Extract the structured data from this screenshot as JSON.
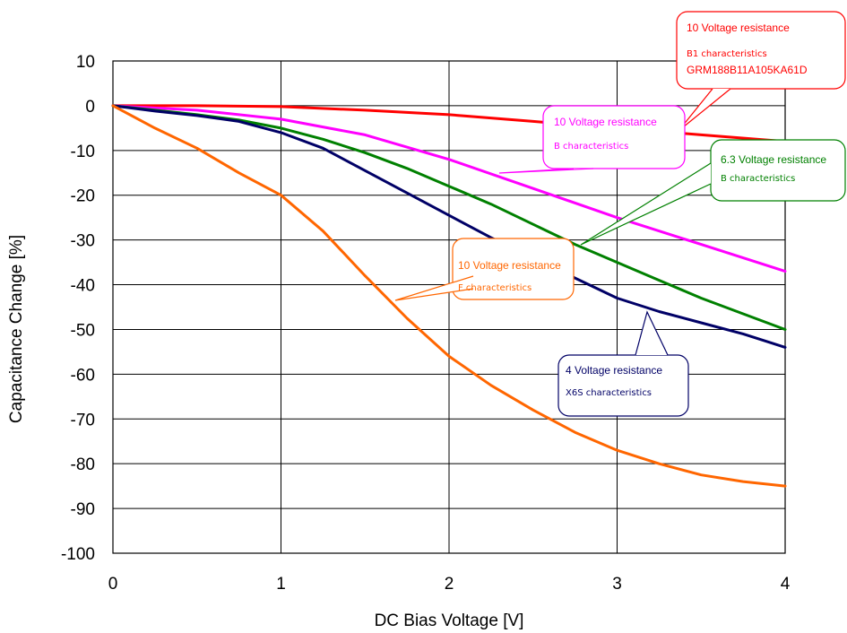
{
  "chart_data": {
    "type": "line",
    "xlabel": "DC Bias Voltage [V]",
    "ylabel": "Capacitance Change [%]",
    "xlim": [
      0,
      4
    ],
    "ylim": [
      -100,
      10
    ],
    "x_ticks": [
      "0",
      "1",
      "2",
      "3",
      "4"
    ],
    "y_ticks": [
      "10",
      "0",
      "-10",
      "-20",
      "-30",
      "-40",
      "-50",
      "-60",
      "-70",
      "-80",
      "-90",
      "-100"
    ],
    "grid": true,
    "series": [
      {
        "key": "b1_10v",
        "color": "#ff0000",
        "x": [
          0,
          0.5,
          1.0,
          1.5,
          2.0,
          2.5,
          3.0,
          3.5,
          4.0
        ],
        "y": [
          0,
          0,
          -0.2,
          -1,
          -2,
          -3.5,
          -5,
          -6.5,
          -8
        ]
      },
      {
        "key": "b_10v",
        "color": "#ff00ff",
        "x": [
          0,
          0.5,
          1.0,
          1.5,
          2.0,
          2.5,
          3.0,
          3.5,
          4.0
        ],
        "y": [
          0,
          -1,
          -3,
          -6.5,
          -12,
          -18.5,
          -25,
          -31,
          -37
        ]
      },
      {
        "key": "b_6_3v",
        "color": "#008000",
        "x": [
          0,
          0.25,
          0.5,
          0.75,
          1.0,
          1.25,
          1.5,
          1.75,
          2.0,
          2.25,
          2.5,
          2.75,
          3.0,
          3.25,
          3.5,
          3.75,
          4.0
        ],
        "y": [
          0,
          -1,
          -2,
          -3.2,
          -5,
          -7.5,
          -10.5,
          -14,
          -18,
          -22,
          -26.5,
          -31,
          -35,
          -39,
          -43,
          -46.5,
          -50
        ]
      },
      {
        "key": "x6s_4v",
        "color": "#000066",
        "x": [
          0,
          0.25,
          0.5,
          0.75,
          1.0,
          1.25,
          1.5,
          1.75,
          2.0,
          2.25,
          2.5,
          2.75,
          3.0,
          3.25,
          3.5,
          3.75,
          4.0
        ],
        "y": [
          0,
          -1.2,
          -2.2,
          -3.5,
          -6,
          -9.5,
          -14.5,
          -19.5,
          -24.5,
          -29.5,
          -34,
          -38.5,
          -43,
          -46,
          -48.5,
          -51,
          -54
        ]
      },
      {
        "key": "f_10v",
        "color": "#ff6600",
        "x": [
          0,
          0.25,
          0.5,
          0.75,
          1.0,
          1.25,
          1.5,
          1.75,
          2.0,
          2.25,
          2.5,
          2.75,
          3.0,
          3.25,
          3.5,
          3.75,
          4.0
        ],
        "y": [
          0,
          -5,
          -9.5,
          -15,
          -20,
          -28,
          -38,
          -47.5,
          -56,
          -62.5,
          -68,
          -73,
          -77,
          -80,
          -82.5,
          -84,
          -85
        ]
      }
    ]
  },
  "callouts": [
    {
      "key": "b1_10v",
      "line1": "10 Voltage resistance",
      "line2": "B1 characteristics",
      "line3": "GRM188B11A105KA61D",
      "color": "#ff0000"
    },
    {
      "key": "b_10v",
      "line1": "10 Voltage resistance",
      "line2": "B characteristics",
      "color": "#ff00ff"
    },
    {
      "key": "b_6_3v",
      "line1": "6.3 Voltage resistance",
      "line2": "B characteristics",
      "color": "#008000"
    },
    {
      "key": "f_10v",
      "line1": "10 Voltage resistance",
      "line2": "F characteristics",
      "color": "#ff6600"
    },
    {
      "key": "x6s_4v",
      "line1": "4 Voltage resistance",
      "line2": "X6S characteristics",
      "color": "#000066"
    }
  ]
}
